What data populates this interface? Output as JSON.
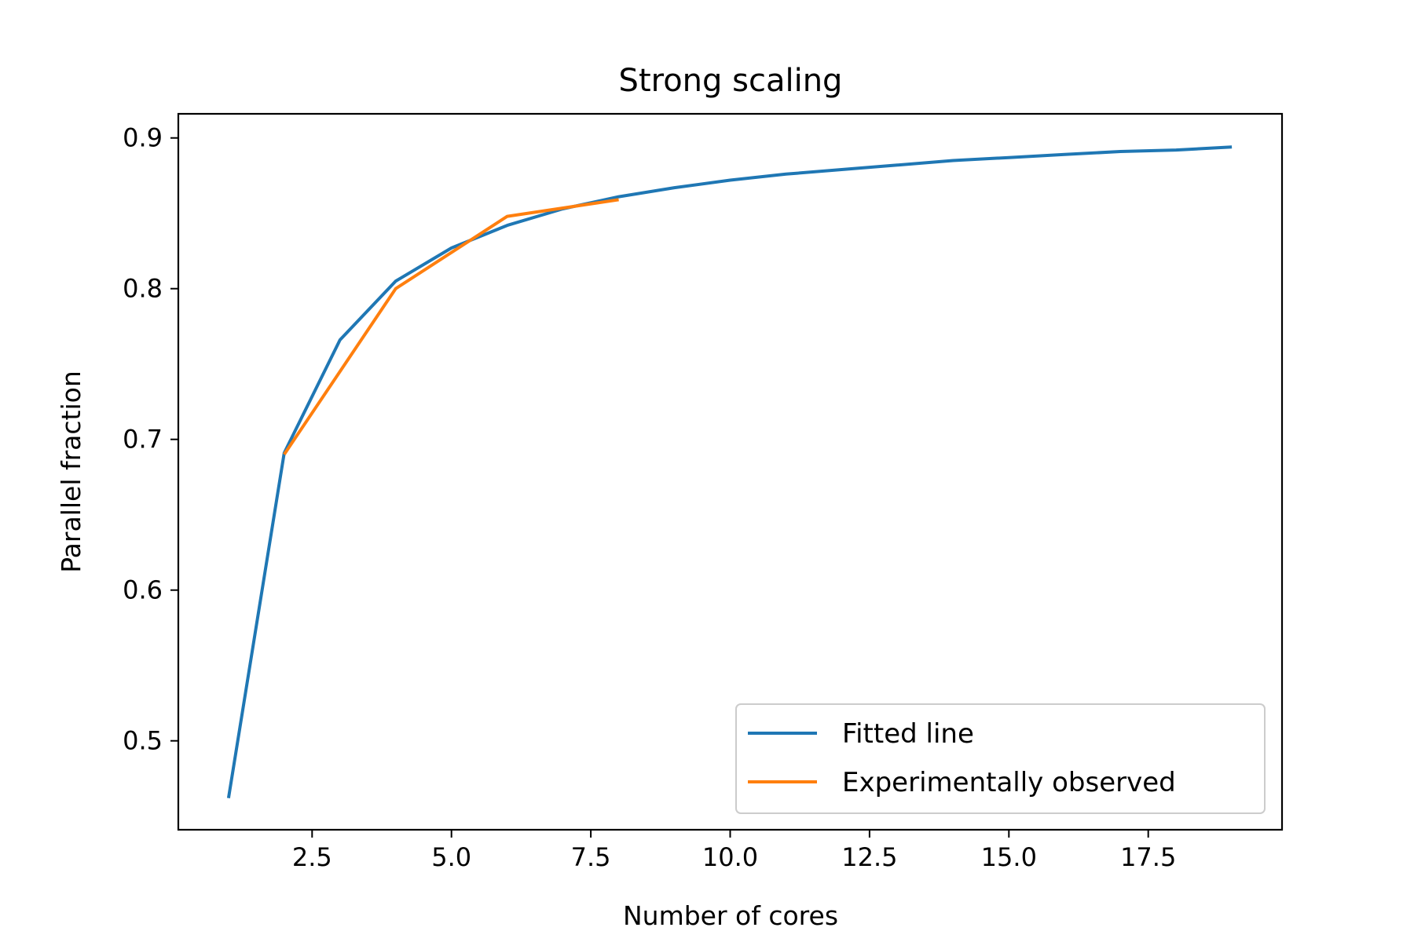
{
  "chart_data": {
    "type": "line",
    "title": "Strong scaling",
    "xlabel": "Number of cores",
    "ylabel": "Parallel fraction",
    "xlim": [
      0.1,
      19.9
    ],
    "ylim": [
      0.441,
      0.916
    ],
    "x_ticks": [
      {
        "value": 2.5,
        "label": "2.5"
      },
      {
        "value": 5.0,
        "label": "5.0"
      },
      {
        "value": 7.5,
        "label": "7.5"
      },
      {
        "value": 10.0,
        "label": "10.0"
      },
      {
        "value": 12.5,
        "label": "12.5"
      },
      {
        "value": 15.0,
        "label": "15.0"
      },
      {
        "value": 17.5,
        "label": "17.5"
      }
    ],
    "y_ticks": [
      {
        "value": 0.5,
        "label": "0.5"
      },
      {
        "value": 0.6,
        "label": "0.6"
      },
      {
        "value": 0.7,
        "label": "0.7"
      },
      {
        "value": 0.8,
        "label": "0.8"
      },
      {
        "value": 0.9,
        "label": "0.9"
      }
    ],
    "grid": false,
    "legend_position": "lower-right",
    "series": [
      {
        "name": "Fitted line",
        "color": "#1f77b4",
        "x": [
          1,
          2,
          3,
          4,
          5,
          6,
          7,
          8,
          9,
          10,
          11,
          12,
          13,
          14,
          15,
          16,
          17,
          18,
          19
        ],
        "y": [
          0.462,
          0.691,
          0.766,
          0.805,
          0.827,
          0.842,
          0.853,
          0.861,
          0.867,
          0.872,
          0.876,
          0.879,
          0.882,
          0.885,
          0.887,
          0.889,
          0.891,
          0.892,
          0.894
        ]
      },
      {
        "name": "Experimentally observed",
        "color": "#ff7f0e",
        "x": [
          2,
          4,
          6,
          8
        ],
        "y": [
          0.69,
          0.8,
          0.848,
          0.859
        ]
      }
    ]
  }
}
